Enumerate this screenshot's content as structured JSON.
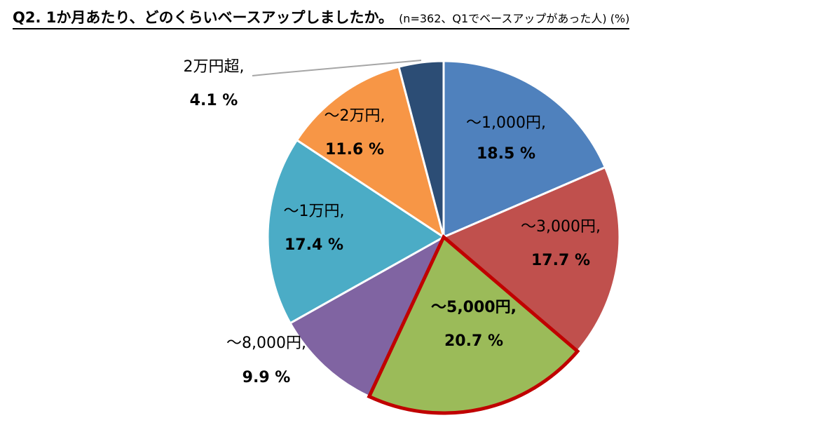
{
  "chart_data": {
    "type": "pie",
    "title": "Q2. 1か月あたり、どのくらいベースアップしましたか。",
    "subtitle": "(n=362、Q1でベースアップがあった人) (%)",
    "unit": "%",
    "start": "top, clockwise",
    "slices": [
      {
        "label": "～1,000円,",
        "value": 18.5,
        "value_text": "18.5 %",
        "color": "#4F81BD"
      },
      {
        "label": "～3,000円,",
        "value": 17.7,
        "value_text": "17.7 %",
        "color": "#C0504D"
      },
      {
        "label": "～5,000円,",
        "value": 20.7,
        "value_text": "20.7 %",
        "color": "#9BBB59",
        "highlighted": true,
        "highlight_color": "#C00000"
      },
      {
        "label": "～8,000円,",
        "value": 9.9,
        "value_text": "9.9 %",
        "color": "#8064A2"
      },
      {
        "label": "～1万円,",
        "value": 17.4,
        "value_text": "17.4 %",
        "color": "#4BACC6"
      },
      {
        "label": "～2万円,",
        "value": 11.6,
        "value_text": "11.6 %",
        "color": "#F79646"
      },
      {
        "label": "2万円超,",
        "value": 4.1,
        "value_text": "4.1 %",
        "color": "#2C4D75"
      }
    ]
  }
}
